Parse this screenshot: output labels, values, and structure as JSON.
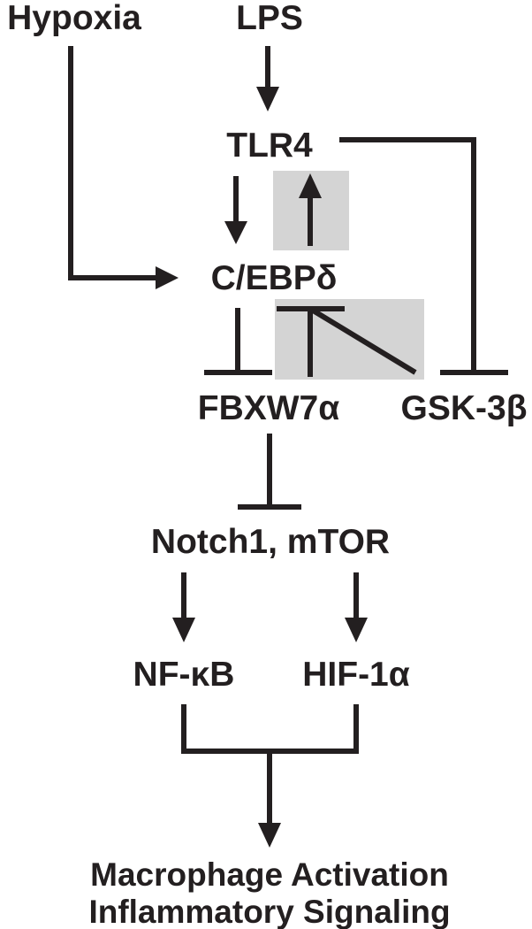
{
  "nodes": {
    "hypoxia": "Hypoxia",
    "lps": "LPS",
    "tlr4": "TLR4",
    "cebpd": "C/EBPδ",
    "fbxw7a": "FBXW7α",
    "gsk3b": "GSK-3β",
    "notch_mtor": "Notch1, mTOR",
    "nfkb": "NF-κB",
    "hif1a": "HIF-1α",
    "outcome_line1": "Macrophage Activation",
    "outcome_line2": "Inflammatory Signaling"
  },
  "colors": {
    "ink": "#231f20",
    "highlight": "#d4d4d4",
    "background": "#ffffff"
  }
}
